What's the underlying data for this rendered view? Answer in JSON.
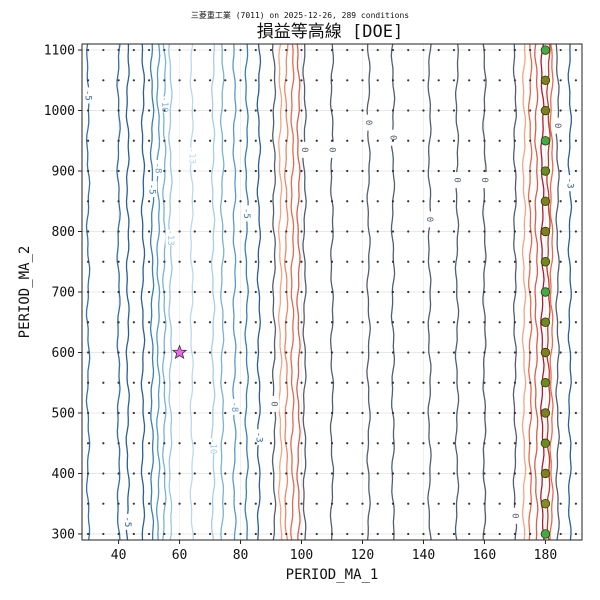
{
  "chart_data": {
    "type": "contour",
    "subtitle": "三菱重工業 (7011) on 2025-12-26, 289 conditions",
    "title": "損益等高線 [DOE]",
    "xlabel": "PERIOD_MA_1",
    "ylabel": "PERIOD_MA_2",
    "xlim": [
      28,
      192
    ],
    "ylim": [
      290,
      1110
    ],
    "xticks": [
      40,
      60,
      80,
      100,
      120,
      140,
      160,
      180
    ],
    "yticks": [
      300,
      400,
      500,
      600,
      700,
      800,
      900,
      1000,
      1100
    ],
    "grid": true,
    "contours": [
      {
        "x": 30,
        "color": "#3a6f9f",
        "label": "-5",
        "label_y": 1025
      },
      {
        "x": 40,
        "color": "#3a6f9f",
        "label": "",
        "label_y": 0
      },
      {
        "x": 43,
        "color": "#2c5f8f",
        "label": "-5",
        "label_y": 320
      },
      {
        "x": 48,
        "color": "#2c5f8f",
        "label": "",
        "label_y": 0
      },
      {
        "x": 51,
        "color": "#3a7fb0",
        "label": "-5",
        "label_y": 870
      },
      {
        "x": 53,
        "color": "#5a9ac6",
        "label": "-8",
        "label_y": 905
      },
      {
        "x": 55,
        "color": "#7bb2d6",
        "label": "-10",
        "label_y": 1010
      },
      {
        "x": 57,
        "color": "#9cc6e2",
        "label": "-13",
        "label_y": 790
      },
      {
        "x": 64,
        "color": "#bcd8ec",
        "label": "-13",
        "label_y": 925
      },
      {
        "x": 71,
        "color": "#a8cde6",
        "label": "-10",
        "label_y": 445
      },
      {
        "x": 74,
        "color": "#7bb2d6",
        "label": "",
        "label_y": 0
      },
      {
        "x": 78,
        "color": "#5a9ac6",
        "label": "-8",
        "label_y": 510
      },
      {
        "x": 82,
        "color": "#3a7fb0",
        "label": "-5",
        "label_y": 830
      },
      {
        "x": 86,
        "color": "#2c5f8f",
        "label": "-3",
        "label_y": 460
      },
      {
        "x": 91,
        "color": "#555e6e",
        "label": "0",
        "label_y": 515
      },
      {
        "x": 93,
        "color": "#f4a582",
        "label": "",
        "label_y": 0
      },
      {
        "x": 95,
        "color": "#ee8866",
        "label": "",
        "label_y": 0
      },
      {
        "x": 97,
        "color": "#e56b4e",
        "label": "",
        "label_y": 0
      },
      {
        "x": 99,
        "color": "#d6604d",
        "label": "",
        "label_y": 0
      },
      {
        "x": 101,
        "color": "#555e6e",
        "label": "0",
        "label_y": 935
      },
      {
        "x": 110,
        "color": "#555e6e",
        "label": "0",
        "label_y": 935
      },
      {
        "x": 122,
        "color": "#555e6e",
        "label": "0",
        "label_y": 980
      },
      {
        "x": 130,
        "color": "#555e6e",
        "label": "0",
        "label_y": 955
      },
      {
        "x": 142,
        "color": "#555e6e",
        "label": "0",
        "label_y": 820
      },
      {
        "x": 151,
        "color": "#555e6e",
        "label": "0",
        "label_y": 885
      },
      {
        "x": 160,
        "color": "#555e6e",
        "label": "0",
        "label_y": 885
      },
      {
        "x": 170,
        "color": "#555e6e",
        "label": "0",
        "label_y": 330
      },
      {
        "x": 173,
        "color": "#f4a582",
        "label": "",
        "label_y": 0
      },
      {
        "x": 175,
        "color": "#e56b4e",
        "label": "",
        "label_y": 0
      },
      {
        "x": 177,
        "color": "#d6604d",
        "label": "",
        "label_y": 0
      },
      {
        "x": 179,
        "color": "#b2182b",
        "label": "",
        "label_y": 0
      },
      {
        "x": 181,
        "color": "#c0392b",
        "label": "",
        "label_y": 0
      },
      {
        "x": 182,
        "color": "#e56b4e",
        "label": "",
        "label_y": 0
      },
      {
        "x": 184,
        "color": "#555e6e",
        "label": "0",
        "label_y": 975
      },
      {
        "x": 188,
        "color": "#2c5f8f",
        "label": "-3",
        "label_y": 880
      }
    ],
    "scatter_x": [
      30,
      35,
      40,
      45,
      50,
      55,
      60,
      65,
      70,
      75,
      80,
      85,
      90,
      95,
      100,
      105,
      110,
      115,
      120,
      125,
      130,
      135,
      140,
      145,
      150,
      155,
      160,
      165,
      170,
      175,
      180,
      185,
      190
    ],
    "scatter_y": [
      300,
      350,
      400,
      450,
      500,
      550,
      600,
      650,
      700,
      750,
      800,
      850,
      900,
      950,
      1000,
      1050,
      1100
    ],
    "highlighted": {
      "x": 180,
      "y": [
        300,
        350,
        400,
        450,
        500,
        550,
        600,
        650,
        700,
        750,
        800,
        850,
        900,
        950,
        1000,
        1050,
        1100
      ],
      "color": "#7aa428",
      "edge_colors": [
        "#44aa44",
        "#8a8a22",
        "#7f7f1f",
        "#6e8a1e",
        "#7f7f1f",
        "#6e8a1e",
        "#7f7f1f",
        "#6e8a1e",
        "#44aa44",
        "#6e8a1e",
        "#7f7f1f",
        "#7f7f1f",
        "#6e8a1e",
        "#44aa44",
        "#7f7f1f",
        "#7f7f1f",
        "#44aa44"
      ]
    },
    "best": {
      "x": 60,
      "y": 600,
      "color": "#ee66ee"
    }
  }
}
